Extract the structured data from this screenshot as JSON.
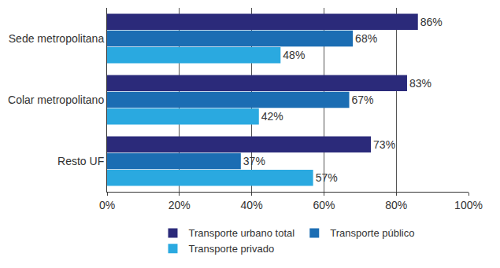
{
  "chart_data": {
    "type": "bar",
    "orientation": "horizontal",
    "categories": [
      "Sede metropolitana",
      "Colar metropolitano",
      "Resto UF"
    ],
    "series": [
      {
        "name": "Transporte urbano total",
        "color": "#2b2a7a",
        "values": [
          86,
          83,
          73
        ],
        "value_labels": [
          "86%",
          "83%",
          "73%"
        ]
      },
      {
        "name": "Transporte público",
        "color": "#1b6db3",
        "values": [
          68,
          67,
          37
        ],
        "value_labels": [
          "68%",
          "67%",
          "37%"
        ]
      },
      {
        "name": "Transporte privado",
        "color": "#2aa9e0",
        "values": [
          48,
          42,
          57
        ],
        "value_labels": [
          "48%",
          "42%",
          "57%"
        ]
      }
    ],
    "xlim": [
      0,
      100
    ],
    "xticks": [
      {
        "value": 0,
        "label": "0%"
      },
      {
        "value": 20,
        "label": "20%"
      },
      {
        "value": 40,
        "label": "40%"
      },
      {
        "value": 60,
        "label": "60%"
      },
      {
        "value": 80,
        "label": "80%"
      },
      {
        "value": 100,
        "label": "100%"
      }
    ],
    "grid": true,
    "legend": "bottom",
    "data_labels": true
  }
}
